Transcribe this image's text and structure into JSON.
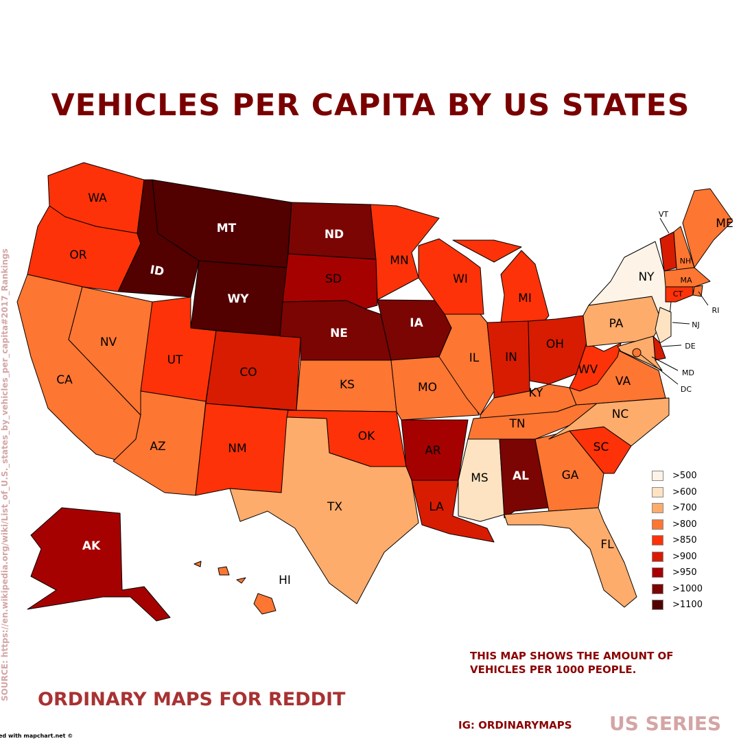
{
  "title": "VEHICLES PER CAPITA BY US STATES",
  "source": "SOURCE: https://en.wikipedia.org/wiki/List_of_U.S._states_by_vehicles_per_capita#2017_Rankings",
  "note": "THIS MAP SHOWS THE AMOUNT OF VEHICLES PER 1000 PEOPLE.",
  "credit": "ORDINARY MAPS FOR REDDIT",
  "ig": "IG: ORDINARYMAPS",
  "series": "US SERIES",
  "mapchart": "ed with mapchart.net ©",
  "legend": [
    {
      "label": ">500",
      "color": "#fdf4e7"
    },
    {
      "label": ">600",
      "color": "#fde3c2"
    },
    {
      "label": ">700",
      "color": "#fdac6b"
    },
    {
      "label": ">800",
      "color": "#fd7632"
    },
    {
      "label": ">850",
      "color": "#fd3208"
    },
    {
      "label": ">900",
      "color": "#d71c02"
    },
    {
      "label": ">950",
      "color": "#a60101"
    },
    {
      "label": ">1000",
      "color": "#7a0503"
    },
    {
      "label": ">1100",
      "color": "#520000"
    }
  ],
  "states": [
    {
      "abbr": "WA",
      "bin": ">850"
    },
    {
      "abbr": "OR",
      "bin": ">850"
    },
    {
      "abbr": "CA",
      "bin": ">800"
    },
    {
      "abbr": "NV",
      "bin": ">800"
    },
    {
      "abbr": "ID",
      "bin": ">1100"
    },
    {
      "abbr": "MT",
      "bin": ">1100"
    },
    {
      "abbr": "WY",
      "bin": ">1100"
    },
    {
      "abbr": "UT",
      "bin": ">850"
    },
    {
      "abbr": "AZ",
      "bin": ">800"
    },
    {
      "abbr": "CO",
      "bin": ">900"
    },
    {
      "abbr": "NM",
      "bin": ">850"
    },
    {
      "abbr": "ND",
      "bin": ">1000"
    },
    {
      "abbr": "SD",
      "bin": ">950"
    },
    {
      "abbr": "NE",
      "bin": ">1000"
    },
    {
      "abbr": "KS",
      "bin": ">800"
    },
    {
      "abbr": "OK",
      "bin": ">850"
    },
    {
      "abbr": "TX",
      "bin": ">700"
    },
    {
      "abbr": "MN",
      "bin": ">850"
    },
    {
      "abbr": "IA",
      "bin": ">1000"
    },
    {
      "abbr": "MO",
      "bin": ">800"
    },
    {
      "abbr": "AR",
      "bin": ">950"
    },
    {
      "abbr": "LA",
      "bin": ">900"
    },
    {
      "abbr": "WI",
      "bin": ">850"
    },
    {
      "abbr": "IL",
      "bin": ">800"
    },
    {
      "abbr": "MI",
      "bin": ">850"
    },
    {
      "abbr": "IN",
      "bin": ">900"
    },
    {
      "abbr": "OH",
      "bin": ">900"
    },
    {
      "abbr": "KY",
      "bin": ">800"
    },
    {
      "abbr": "TN",
      "bin": ">800"
    },
    {
      "abbr": "MS",
      "bin": ">600"
    },
    {
      "abbr": "AL",
      "bin": ">1000"
    },
    {
      "abbr": "GA",
      "bin": ">800"
    },
    {
      "abbr": "FL",
      "bin": ">700"
    },
    {
      "abbr": "SC",
      "bin": ">850"
    },
    {
      "abbr": "NC",
      "bin": ">700"
    },
    {
      "abbr": "VA",
      "bin": ">800"
    },
    {
      "abbr": "WV",
      "bin": ">850"
    },
    {
      "abbr": "PA",
      "bin": ">700"
    },
    {
      "abbr": "NY",
      "bin": ">500"
    },
    {
      "abbr": "VT",
      "bin": ">900"
    },
    {
      "abbr": "NH",
      "bin": ">800"
    },
    {
      "abbr": "ME",
      "bin": ">800"
    },
    {
      "abbr": "MA",
      "bin": ">800"
    },
    {
      "abbr": "RI",
      "bin": ">800"
    },
    {
      "abbr": "CT",
      "bin": ">850"
    },
    {
      "abbr": "NJ",
      "bin": ">600"
    },
    {
      "abbr": "DE",
      "bin": ">900"
    },
    {
      "abbr": "MD",
      "bin": ">700"
    },
    {
      "abbr": "DC",
      "bin": ">800"
    },
    {
      "abbr": "AK",
      "bin": ">950"
    },
    {
      "abbr": "HI",
      "bin": ">800"
    }
  ]
}
